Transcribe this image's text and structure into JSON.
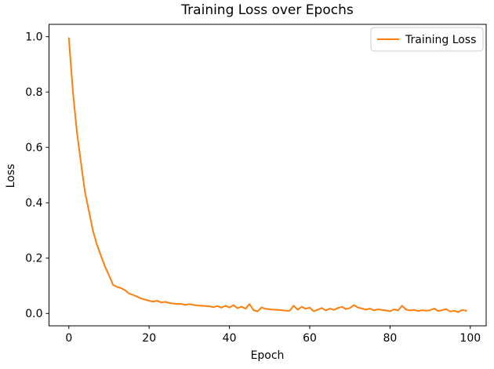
{
  "chart_data": {
    "type": "line",
    "title": "Training Loss over Epochs",
    "xlabel": "Epoch",
    "ylabel": "Loss",
    "grid": false,
    "legend": {
      "position": "upper right",
      "label": "Training Loss"
    },
    "line_color": "#ff7f0e",
    "legend_border_color": "#cccccc",
    "xlim": [
      -4.95,
      103.95
    ],
    "ylim": [
      -0.0445,
      1.0445
    ],
    "x_ticks": [
      0,
      20,
      40,
      60,
      80,
      100
    ],
    "y_ticks": [
      0.0,
      0.2,
      0.4,
      0.6,
      0.8,
      1.0
    ],
    "series": [
      {
        "name": "Training Loss",
        "color": "#ff7f0e",
        "x_start": 0,
        "x_step": 1,
        "values": [
          0.995,
          0.8,
          0.655,
          0.545,
          0.44,
          0.37,
          0.298,
          0.248,
          0.208,
          0.17,
          0.138,
          0.103,
          0.096,
          0.092,
          0.084,
          0.072,
          0.067,
          0.061,
          0.054,
          0.05,
          0.046,
          0.043,
          0.046,
          0.04,
          0.042,
          0.038,
          0.036,
          0.034,
          0.035,
          0.031,
          0.034,
          0.031,
          0.029,
          0.028,
          0.027,
          0.026,
          0.023,
          0.027,
          0.021,
          0.028,
          0.022,
          0.03,
          0.019,
          0.025,
          0.017,
          0.034,
          0.012,
          0.008,
          0.022,
          0.017,
          0.015,
          0.014,
          0.013,
          0.012,
          0.01,
          0.01,
          0.028,
          0.014,
          0.024,
          0.017,
          0.021,
          0.008,
          0.014,
          0.02,
          0.011,
          0.018,
          0.013,
          0.02,
          0.024,
          0.016,
          0.02,
          0.03,
          0.022,
          0.018,
          0.014,
          0.018,
          0.011,
          0.015,
          0.013,
          0.011,
          0.008,
          0.015,
          0.011,
          0.028,
          0.014,
          0.011,
          0.013,
          0.009,
          0.012,
          0.01,
          0.012,
          0.018,
          0.009,
          0.012,
          0.016,
          0.007,
          0.01,
          0.005,
          0.013,
          0.01
        ]
      }
    ]
  }
}
